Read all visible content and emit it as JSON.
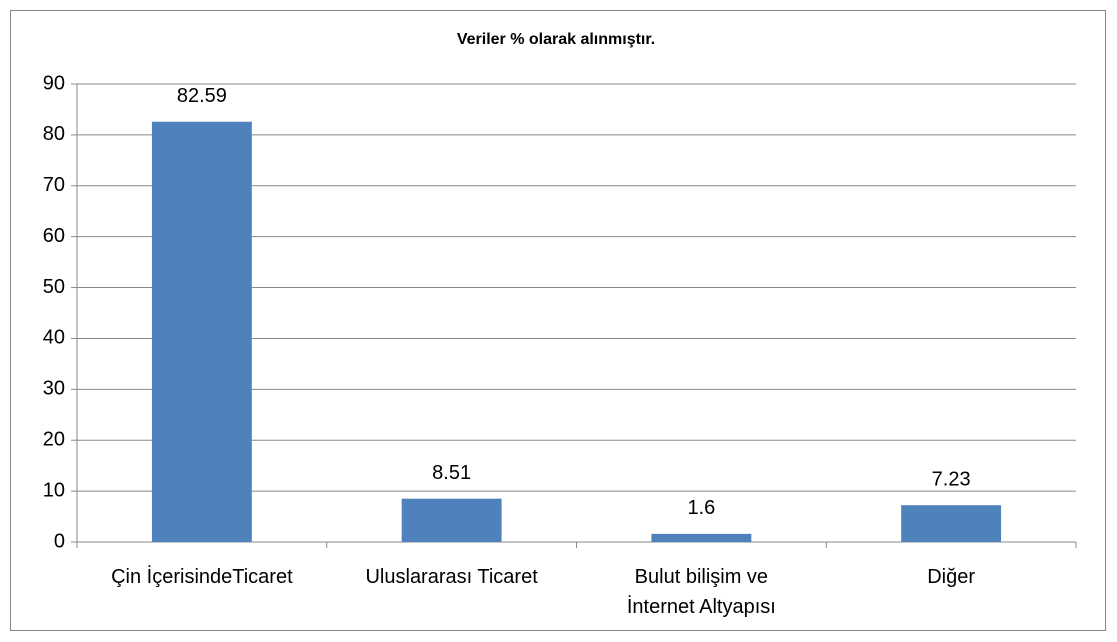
{
  "chart_data": {
    "type": "bar",
    "title": "Veriler % olarak alınmıştır.",
    "categories": [
      "Çin İçerisindeTicaret",
      "Uluslararası Ticaret",
      "Bulut bilişim ve\nİnternet Altyapısı",
      "Diğer"
    ],
    "values": [
      82.59,
      8.51,
      1.6,
      7.23
    ],
    "color": "#4f81bd",
    "ylim": [
      0,
      90
    ],
    "yticks": [
      0,
      10,
      20,
      30,
      40,
      50,
      60,
      70,
      80,
      90
    ],
    "grid": true
  }
}
